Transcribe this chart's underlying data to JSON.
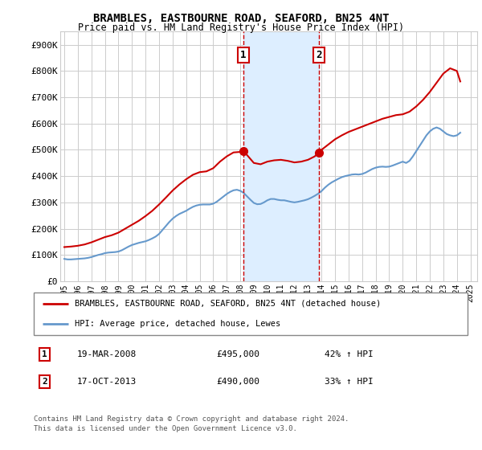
{
  "title": "BRAMBLES, EASTBOURNE ROAD, SEAFORD, BN25 4NT",
  "subtitle": "Price paid vs. HM Land Registry's House Price Index (HPI)",
  "ylabel_ticks": [
    "£0",
    "£100K",
    "£200K",
    "£300K",
    "£400K",
    "£500K",
    "£600K",
    "£700K",
    "£800K",
    "£900K"
  ],
  "ytick_values": [
    0,
    100000,
    200000,
    300000,
    400000,
    500000,
    600000,
    700000,
    800000,
    900000
  ],
  "ylim": [
    0,
    950000
  ],
  "xlim_start": 1994.7,
  "xlim_end": 2025.5,
  "marker1_x": 2008.21,
  "marker1_y": 495000,
  "marker1_label": "1",
  "marker1_date": "19-MAR-2008",
  "marker1_price": "£495,000",
  "marker1_hpi": "42% ↑ HPI",
  "marker2_x": 2013.79,
  "marker2_y": 490000,
  "marker2_label": "2",
  "marker2_date": "17-OCT-2013",
  "marker2_price": "£490,000",
  "marker2_hpi": "33% ↑ HPI",
  "red_line_color": "#cc0000",
  "blue_line_color": "#6699cc",
  "shade_color": "#ddeeff",
  "grid_color": "#cccccc",
  "background_color": "#ffffff",
  "legend_label_red": "BRAMBLES, EASTBOURNE ROAD, SEAFORD, BN25 4NT (detached house)",
  "legend_label_blue": "HPI: Average price, detached house, Lewes",
  "footer1": "Contains HM Land Registry data © Crown copyright and database right 2024.",
  "footer2": "This data is licensed under the Open Government Licence v3.0.",
  "hpi_data": {
    "years": [
      1995.0,
      1995.25,
      1995.5,
      1995.75,
      1996.0,
      1996.25,
      1996.5,
      1996.75,
      1997.0,
      1997.25,
      1997.5,
      1997.75,
      1998.0,
      1998.25,
      1998.5,
      1998.75,
      1999.0,
      1999.25,
      1999.5,
      1999.75,
      2000.0,
      2000.25,
      2000.5,
      2000.75,
      2001.0,
      2001.25,
      2001.5,
      2001.75,
      2002.0,
      2002.25,
      2002.5,
      2002.75,
      2003.0,
      2003.25,
      2003.5,
      2003.75,
      2004.0,
      2004.25,
      2004.5,
      2004.75,
      2005.0,
      2005.25,
      2005.5,
      2005.75,
      2006.0,
      2006.25,
      2006.5,
      2006.75,
      2007.0,
      2007.25,
      2007.5,
      2007.75,
      2008.0,
      2008.25,
      2008.5,
      2008.75,
      2009.0,
      2009.25,
      2009.5,
      2009.75,
      2010.0,
      2010.25,
      2010.5,
      2010.75,
      2011.0,
      2011.25,
      2011.5,
      2011.75,
      2012.0,
      2012.25,
      2012.5,
      2012.75,
      2013.0,
      2013.25,
      2013.5,
      2013.75,
      2014.0,
      2014.25,
      2014.5,
      2014.75,
      2015.0,
      2015.25,
      2015.5,
      2015.75,
      2016.0,
      2016.25,
      2016.5,
      2016.75,
      2017.0,
      2017.25,
      2017.5,
      2017.75,
      2018.0,
      2018.25,
      2018.5,
      2018.75,
      2019.0,
      2019.25,
      2019.5,
      2019.75,
      2020.0,
      2020.25,
      2020.5,
      2020.75,
      2021.0,
      2021.25,
      2021.5,
      2021.75,
      2022.0,
      2022.25,
      2022.5,
      2022.75,
      2023.0,
      2023.25,
      2023.5,
      2023.75,
      2024.0,
      2024.25
    ],
    "values": [
      85000,
      83000,
      83000,
      84000,
      85000,
      86000,
      87000,
      89000,
      92000,
      96000,
      100000,
      103000,
      107000,
      109000,
      110000,
      111000,
      113000,
      118000,
      125000,
      132000,
      138000,
      142000,
      146000,
      149000,
      152000,
      157000,
      163000,
      170000,
      180000,
      195000,
      210000,
      225000,
      238000,
      248000,
      256000,
      262000,
      268000,
      276000,
      283000,
      288000,
      291000,
      292000,
      292000,
      292000,
      295000,
      302000,
      312000,
      322000,
      332000,
      340000,
      346000,
      348000,
      344000,
      336000,
      323000,
      310000,
      298000,
      293000,
      294000,
      300000,
      308000,
      313000,
      313000,
      310000,
      308000,
      308000,
      305000,
      302000,
      300000,
      302000,
      305000,
      308000,
      312000,
      318000,
      325000,
      333000,
      343000,
      356000,
      367000,
      376000,
      383000,
      390000,
      396000,
      400000,
      403000,
      406000,
      407000,
      406000,
      408000,
      413000,
      420000,
      427000,
      432000,
      435000,
      436000,
      435000,
      436000,
      440000,
      445000,
      450000,
      455000,
      450000,
      458000,
      475000,
      495000,
      515000,
      535000,
      555000,
      570000,
      580000,
      585000,
      580000,
      570000,
      560000,
      555000,
      552000,
      555000,
      565000
    ]
  },
  "red_data": {
    "years": [
      1995.0,
      1995.5,
      1996.0,
      1996.5,
      1997.0,
      1997.5,
      1998.0,
      1998.5,
      1999.0,
      1999.5,
      2000.0,
      2000.5,
      2001.0,
      2001.5,
      2002.0,
      2002.5,
      2003.0,
      2003.5,
      2004.0,
      2004.5,
      2005.0,
      2005.5,
      2006.0,
      2006.5,
      2007.0,
      2007.5,
      2008.0,
      2008.21,
      2008.5,
      2008.75,
      2009.0,
      2009.5,
      2010.0,
      2010.5,
      2011.0,
      2011.5,
      2012.0,
      2012.5,
      2013.0,
      2013.5,
      2013.79,
      2014.0,
      2014.5,
      2015.0,
      2015.5,
      2016.0,
      2016.5,
      2017.0,
      2017.5,
      2018.0,
      2018.5,
      2019.0,
      2019.5,
      2020.0,
      2020.5,
      2021.0,
      2021.5,
      2022.0,
      2022.5,
      2023.0,
      2023.5,
      2024.0,
      2024.25
    ],
    "values": [
      130000,
      132000,
      135000,
      140000,
      148000,
      158000,
      168000,
      175000,
      185000,
      200000,
      215000,
      230000,
      248000,
      268000,
      292000,
      318000,
      345000,
      368000,
      388000,
      405000,
      415000,
      418000,
      430000,
      455000,
      475000,
      490000,
      492000,
      495000,
      480000,
      465000,
      450000,
      445000,
      455000,
      460000,
      462000,
      458000,
      452000,
      455000,
      462000,
      475000,
      490000,
      500000,
      520000,
      540000,
      555000,
      568000,
      578000,
      588000,
      598000,
      608000,
      618000,
      625000,
      632000,
      635000,
      645000,
      665000,
      690000,
      720000,
      755000,
      790000,
      810000,
      800000,
      760000
    ]
  }
}
